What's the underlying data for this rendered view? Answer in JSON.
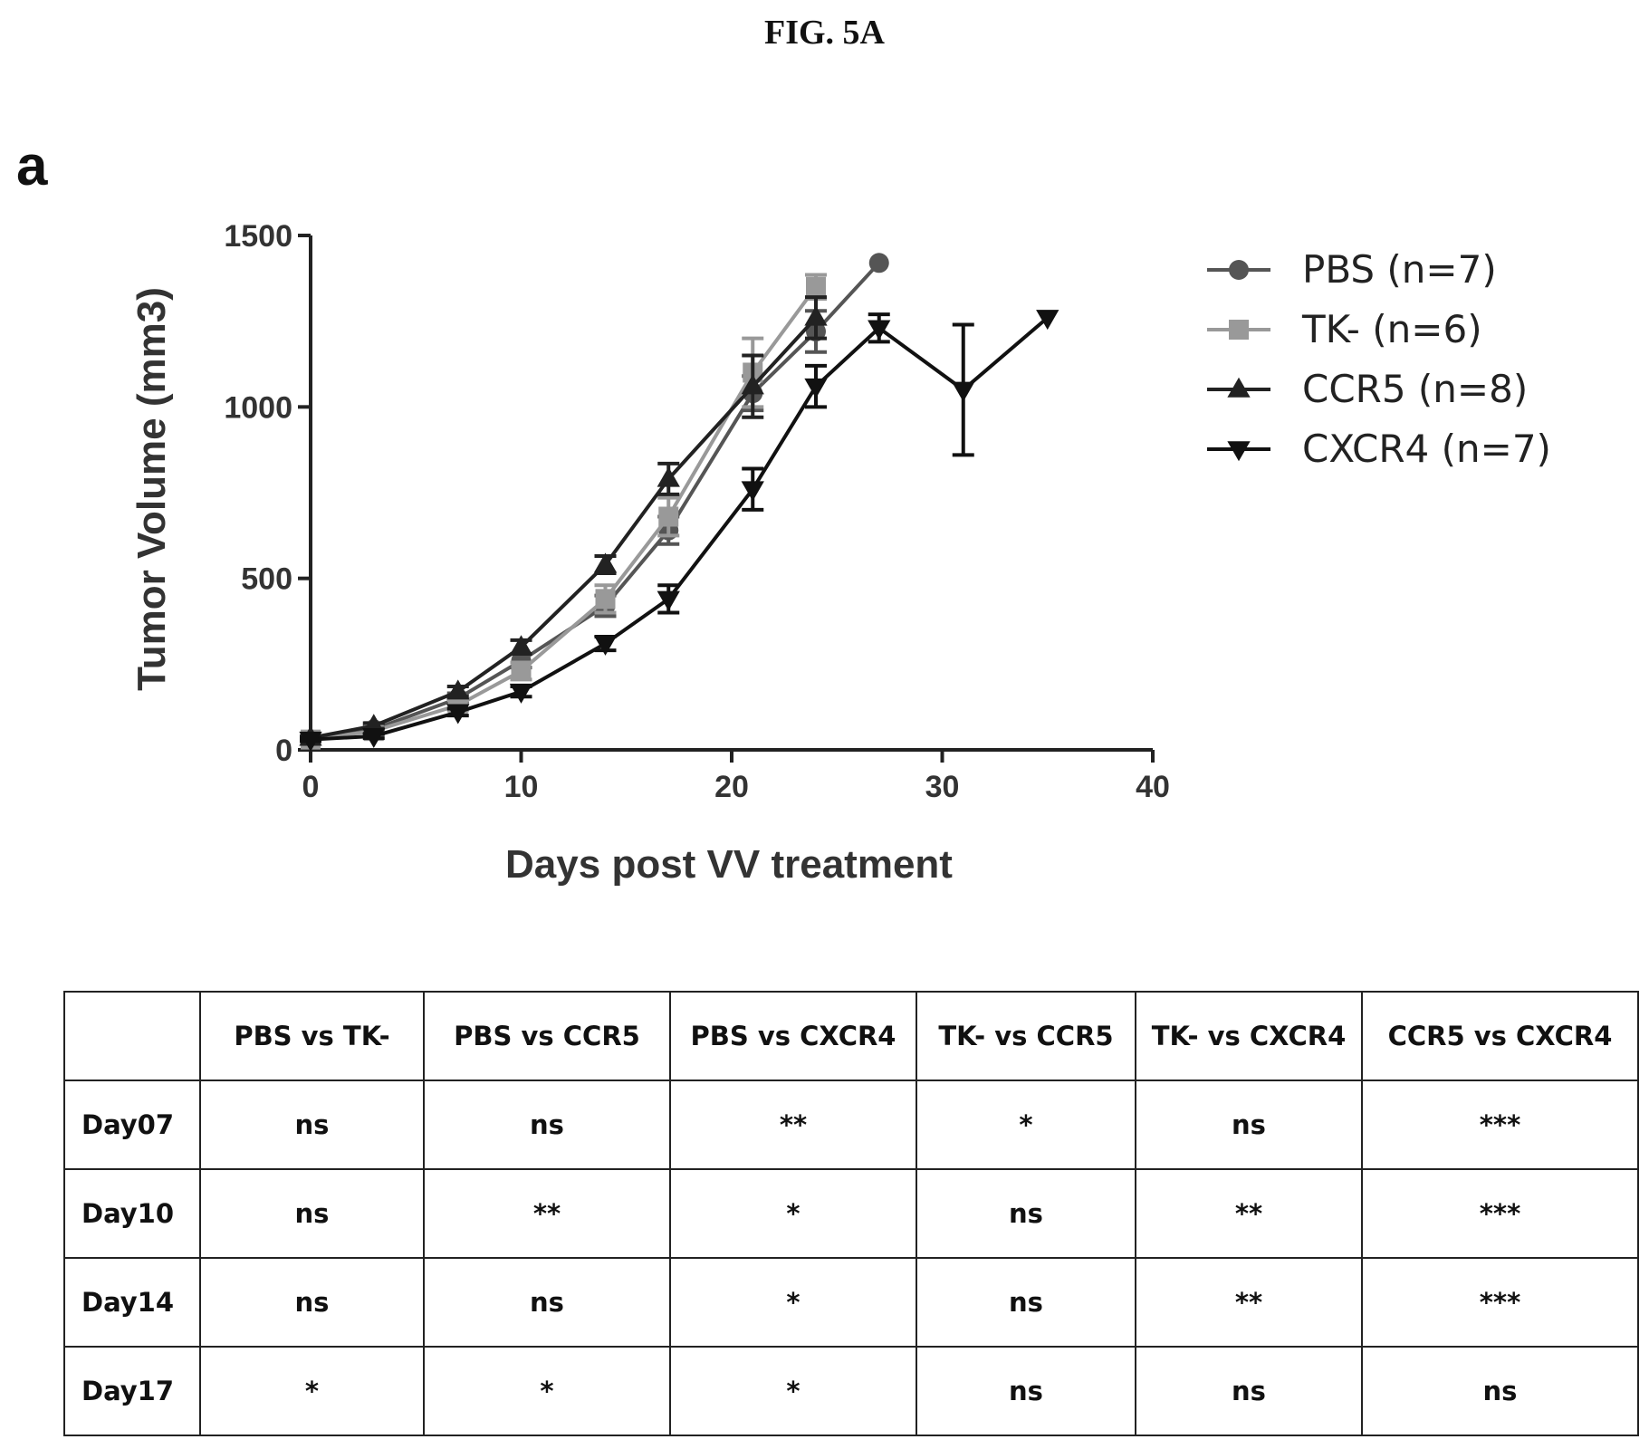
{
  "figure_title": "FIG. 5A",
  "panel_label": "a",
  "chart_data": {
    "type": "line",
    "xlabel": "Days post VV treatment",
    "ylabel": "Tumor Volume (mm3)",
    "xlim": [
      0,
      40
    ],
    "ylim": [
      0,
      1500
    ],
    "xticks": [
      "0",
      "10",
      "20",
      "30",
      "40"
    ],
    "yticks": [
      "0",
      "500",
      "1000",
      "1500"
    ],
    "grid": false,
    "legend_position": "top-right",
    "series": [
      {
        "name": "PBS (n=7)",
        "marker": "circle",
        "color": "#555555",
        "x": [
          0,
          3,
          7,
          10,
          14,
          17,
          21,
          24,
          27
        ],
        "y": [
          30,
          60,
          150,
          260,
          420,
          640,
          1040,
          1220,
          1420
        ],
        "err": [
          5,
          8,
          15,
          20,
          30,
          40,
          50,
          60,
          0
        ]
      },
      {
        "name": "TK- (n=6)",
        "marker": "square",
        "color": "#999999",
        "x": [
          0,
          3,
          7,
          10,
          14,
          17,
          21,
          24
        ],
        "y": [
          30,
          55,
          130,
          230,
          440,
          680,
          1100,
          1350
        ],
        "err": [
          5,
          8,
          15,
          25,
          40,
          55,
          100,
          35
        ]
      },
      {
        "name": "CCR5 (n=8)",
        "marker": "triangle-up",
        "color": "#222222",
        "x": [
          0,
          3,
          7,
          10,
          14,
          17,
          21,
          24
        ],
        "y": [
          35,
          70,
          170,
          300,
          540,
          790,
          1060,
          1260
        ],
        "err": [
          5,
          8,
          15,
          20,
          25,
          45,
          90,
          60
        ]
      },
      {
        "name": "CXCR4 (n=7)",
        "marker": "triangle-down",
        "color": "#111111",
        "x": [
          0,
          3,
          7,
          10,
          14,
          17,
          21,
          24,
          27,
          31,
          35
        ],
        "y": [
          30,
          40,
          110,
          170,
          310,
          440,
          760,
          1060,
          1230,
          1050,
          1260
        ],
        "err": [
          5,
          6,
          10,
          15,
          20,
          40,
          60,
          60,
          40,
          190,
          0
        ]
      }
    ]
  },
  "table": {
    "headers": [
      "",
      "PBS vs TK-",
      "PBS vs CCR5",
      "PBS vs CXCR4",
      "TK- vs CCR5",
      "TK- vs CXCR4",
      "CCR5 vs CXCR4"
    ],
    "rows": [
      [
        "Day07",
        "ns",
        "ns",
        "**",
        "*",
        "ns",
        "***"
      ],
      [
        "Day10",
        "ns",
        "**",
        "*",
        "ns",
        "**",
        "***"
      ],
      [
        "Day14",
        "ns",
        "ns",
        "*",
        "ns",
        "**",
        "***"
      ],
      [
        "Day17",
        "*",
        "*",
        "*",
        "ns",
        "ns",
        "ns"
      ]
    ]
  }
}
